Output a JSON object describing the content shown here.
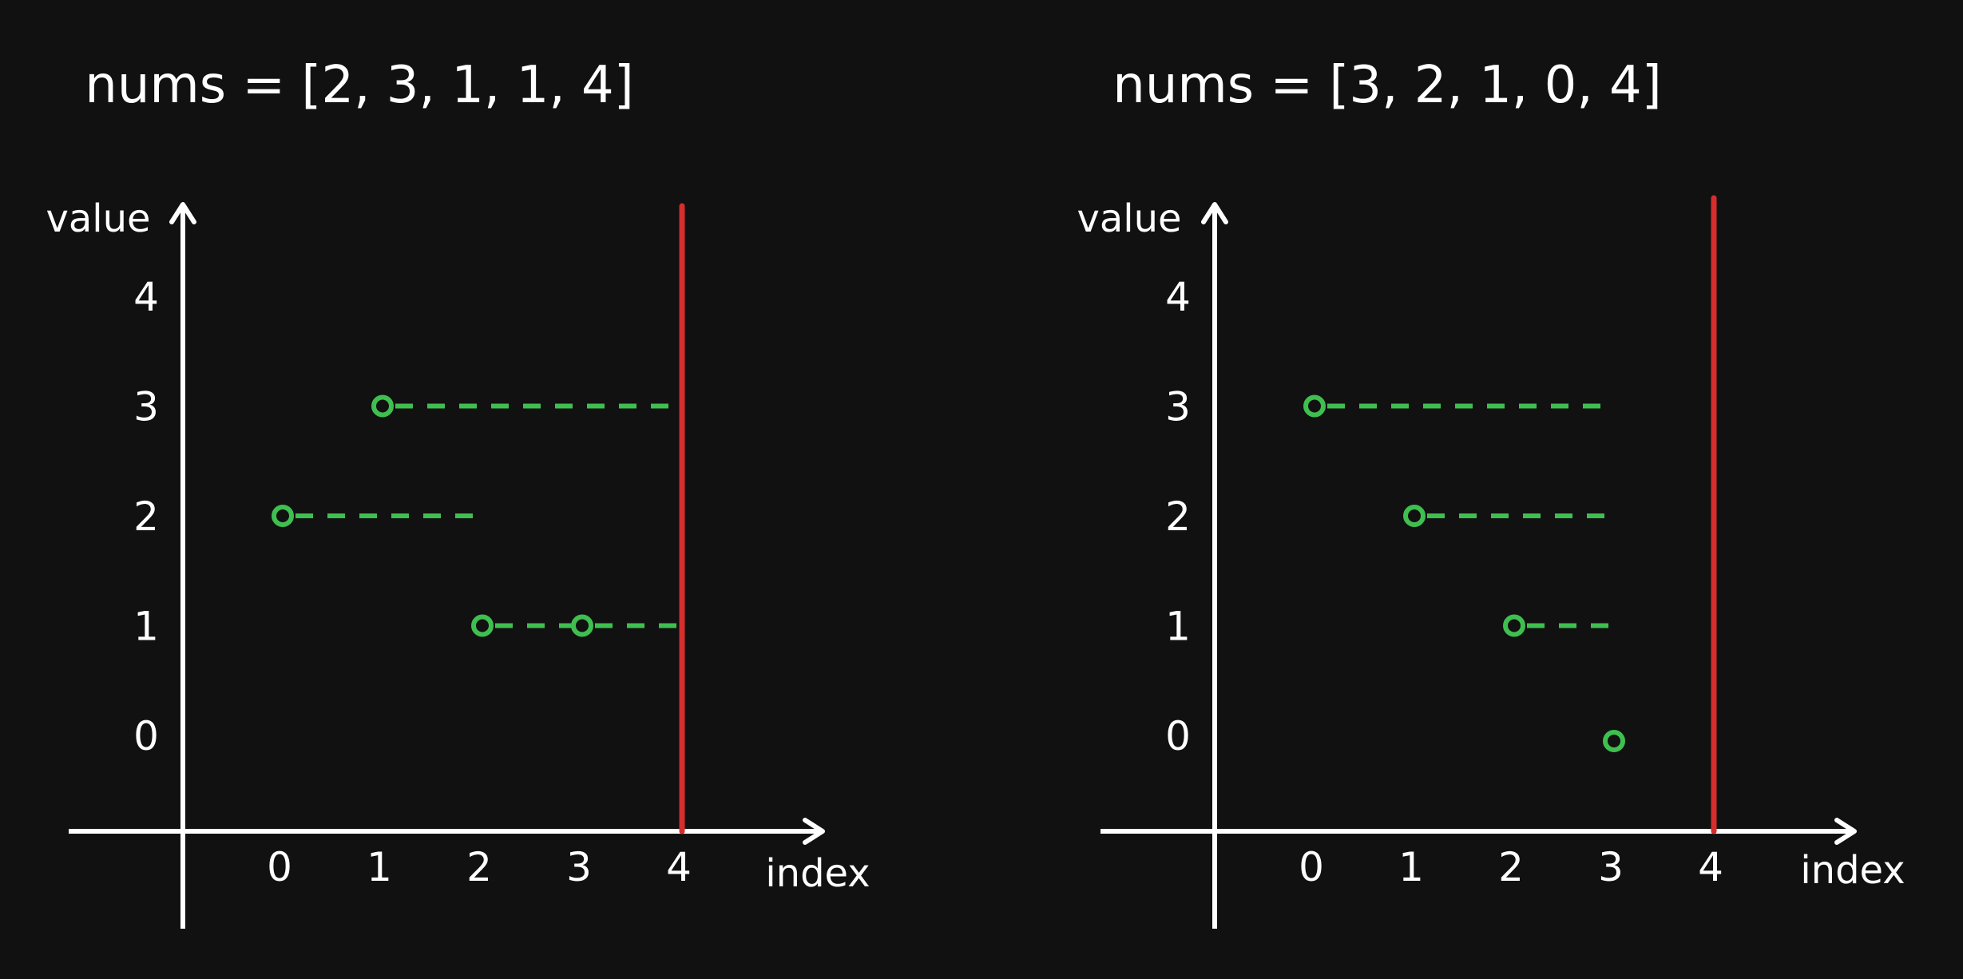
{
  "panels": [
    {
      "title": "nums = [2,  3,  1, 1, 4]",
      "xlabel": "index",
      "ylabel": "value",
      "x_ticks": [
        "0",
        "1",
        "2",
        "3",
        "4"
      ],
      "y_ticks": [
        "0",
        "1",
        "2",
        "3",
        "4"
      ],
      "nums": [
        2,
        3,
        1,
        1,
        4
      ],
      "boundary_index": 4
    },
    {
      "title": "nums = [3,  2,  1, 0,  4]",
      "xlabel": "index",
      "ylabel": "value",
      "x_ticks": [
        "0",
        "1",
        "2",
        "3",
        "4"
      ],
      "y_ticks": [
        "0",
        "1",
        "2",
        "3",
        "4"
      ],
      "nums": [
        3,
        2,
        1,
        0,
        4
      ],
      "boundary_index": 4
    }
  ],
  "colors": {
    "background": "#111111",
    "axis": "#ffffff",
    "point": "#3fbf50",
    "reach_line": "#3fbf50",
    "boundary": "#d62d2d"
  }
}
